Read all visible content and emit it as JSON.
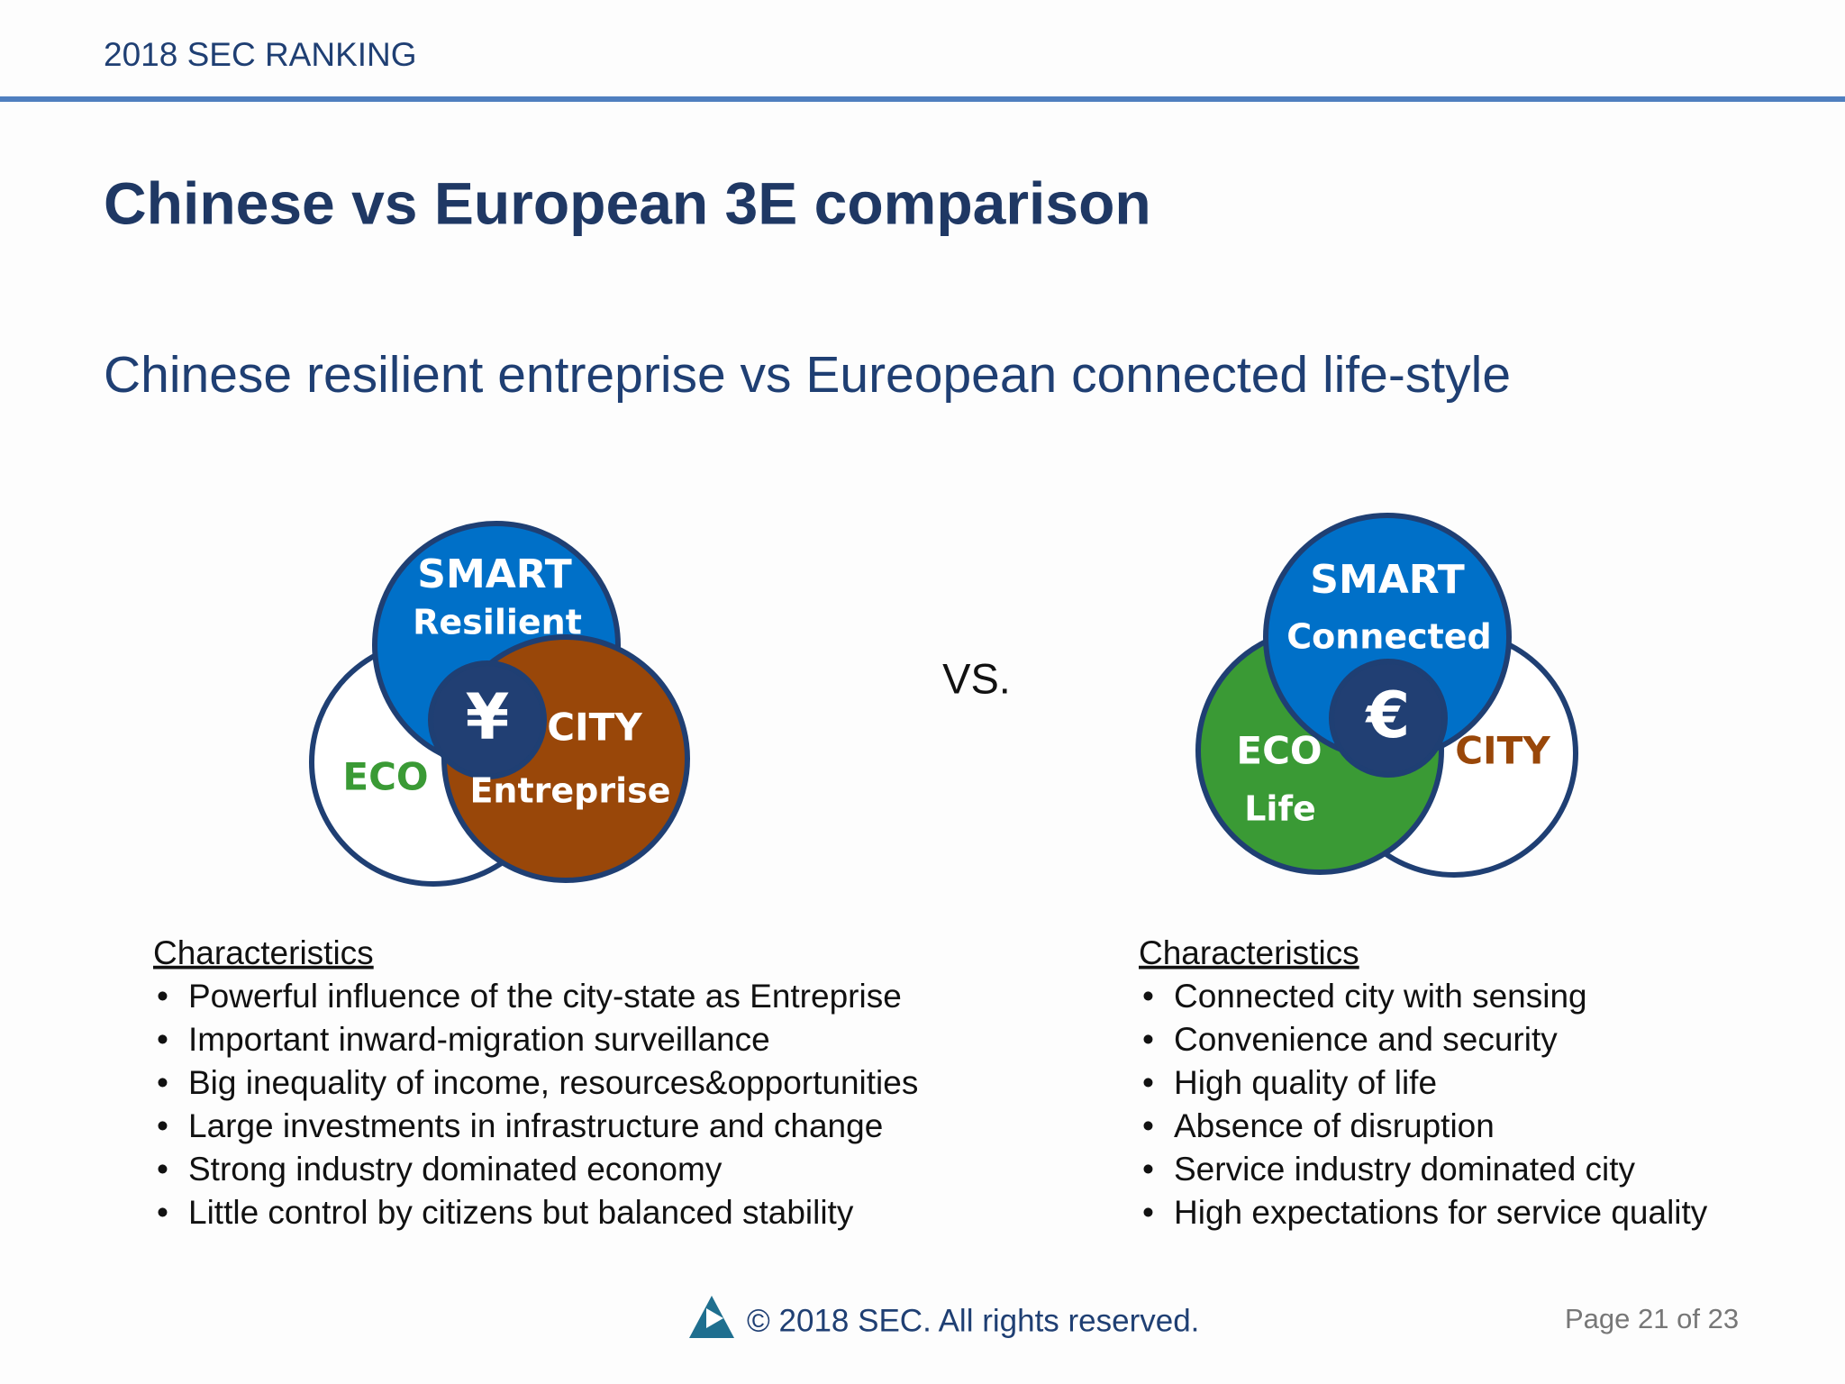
{
  "header": {
    "label": "2018 SEC RANKING"
  },
  "title": "Chinese vs European 3E comparison",
  "subtitle": "Chinese resilient entreprise vs Eureopean connected life-style",
  "left_diagram": {
    "smart": "SMART",
    "smart_sub": "Resilient",
    "center": "¥",
    "city": "CITY",
    "city_sub": "Entreprise",
    "eco": "ECO"
  },
  "vs": "VS.",
  "right_diagram": {
    "smart": "SMART",
    "smart_sub": "Connected",
    "center": "€",
    "eco": "ECO",
    "eco_sub": "Life",
    "city": "CITY"
  },
  "left_list": {
    "heading": "Characteristics",
    "items": [
      "Powerful influence of the city-state as Entreprise",
      "Important inward-migration surveillance",
      "Big inequality of income, resources&opportunities",
      "Large investments in infrastructure and change",
      "Strong industry dominated economy",
      "Little control by citizens but balanced stability"
    ]
  },
  "right_list": {
    "heading": "Characteristics",
    "items": [
      "Connected city with sensing",
      "Convenience and security",
      "High quality of life",
      "Absence of disruption",
      "Service industry dominated city",
      "High expectations for service quality"
    ]
  },
  "footer": {
    "copyright": "© 2018 SEC.  All rights reserved.",
    "page": "Page 21 of 23"
  }
}
